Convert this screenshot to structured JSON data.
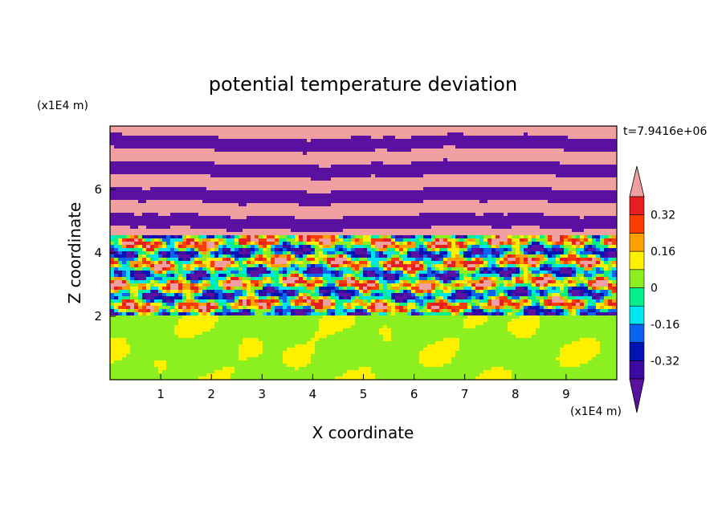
{
  "chart_data": {
    "type": "heatmap",
    "title": "potential temperature deviation",
    "time_label": "t=7.9416e+06",
    "xlabel": "X coordinate",
    "ylabel": "Z coordinate",
    "x_unit": "(x1E4 m)",
    "y_unit": "(x1E4 m)",
    "xlim": [
      0,
      10
    ],
    "ylim": [
      0,
      8
    ],
    "x_ticks": [
      1,
      2,
      3,
      4,
      5,
      6,
      7,
      8,
      9
    ],
    "y_ticks": [
      2,
      4,
      6
    ],
    "colorbar": {
      "levels": [
        -0.4,
        -0.32,
        -0.24,
        -0.16,
        -0.08,
        0,
        0.08,
        0.16,
        0.24,
        0.32,
        0.4
      ],
      "labels": [
        "0.32",
        "0.16",
        "0",
        "-0.16",
        "-0.32"
      ],
      "label_values": [
        0.32,
        0.16,
        0,
        -0.16,
        -0.32
      ],
      "colors": [
        "#5a10a0",
        "#3c0aa0",
        "#0014b4",
        "#0a64f0",
        "#00e6f0",
        "#00f08c",
        "#8cf020",
        "#fff000",
        "#ffa000",
        "#ff3c00",
        "#e61e1e",
        "#f0a0a0"
      ]
    },
    "layers": [
      {
        "z_range": [
          0,
          2
        ],
        "description_values": [
          0,
          0.08
        ]
      },
      {
        "z_range": [
          2,
          4.5
        ],
        "description_values": [
          -0.4,
          0.4
        ]
      },
      {
        "z_range": [
          4.5,
          8
        ],
        "description_values": [
          -0.4,
          0.4
        ]
      }
    ]
  }
}
